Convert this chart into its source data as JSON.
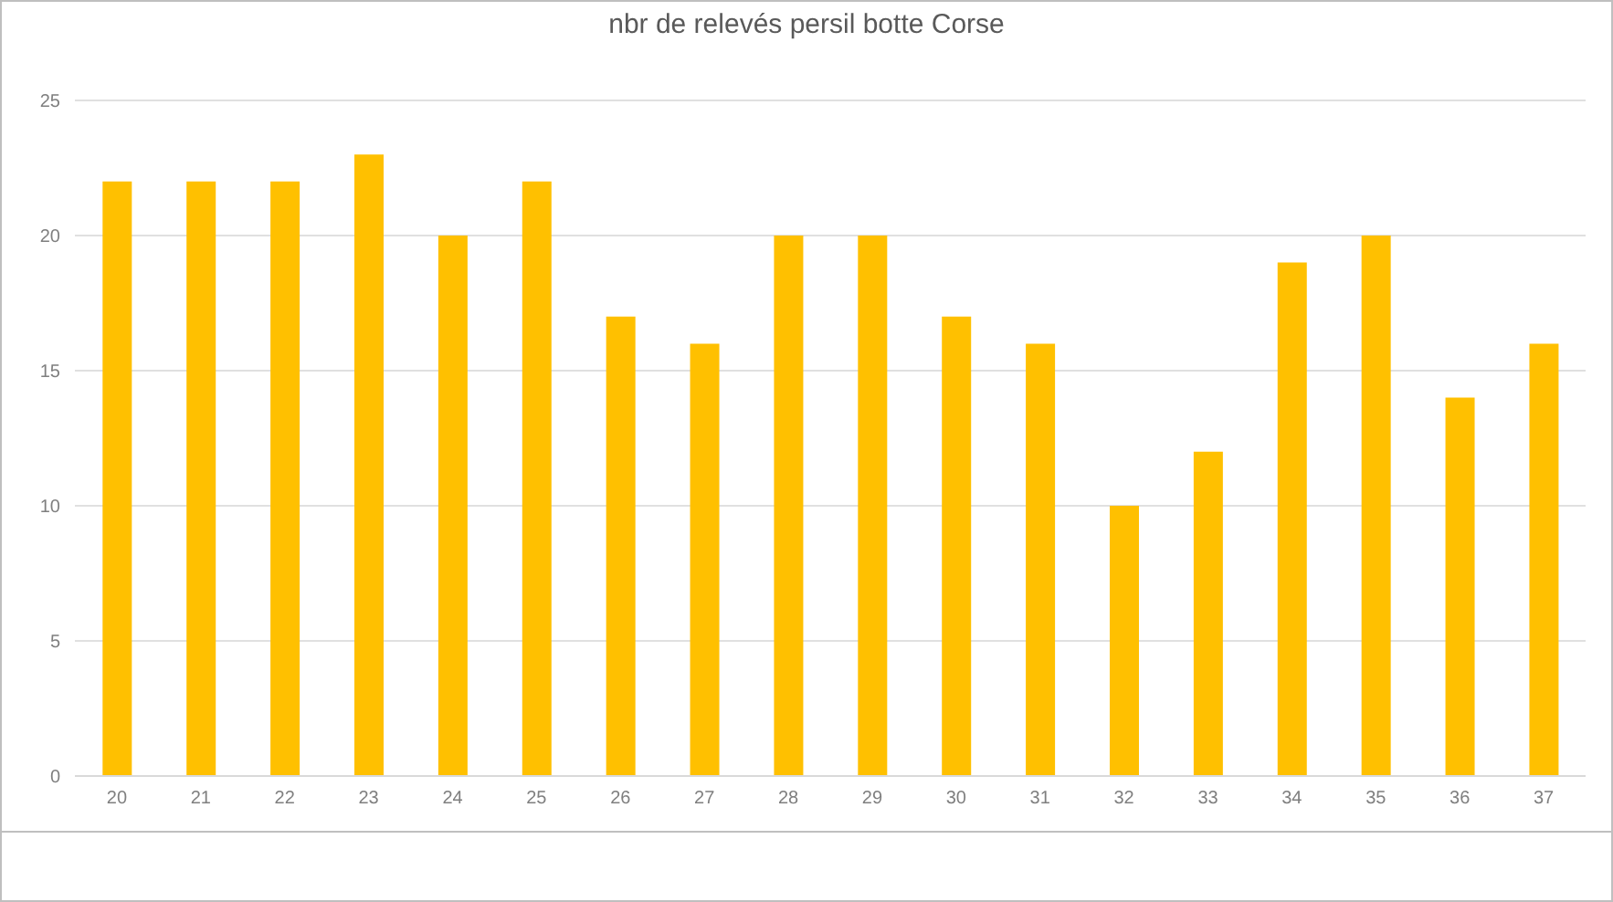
{
  "chart_data": {
    "type": "bar",
    "title": "nbr de relevés persil botte Corse",
    "categories": [
      "20",
      "21",
      "22",
      "23",
      "24",
      "25",
      "26",
      "27",
      "28",
      "29",
      "30",
      "31",
      "32",
      "33",
      "34",
      "35",
      "36",
      "37"
    ],
    "values": [
      22,
      22,
      22,
      23,
      20,
      22,
      17,
      16,
      20,
      20,
      17,
      16,
      10,
      12,
      19,
      20,
      14,
      16
    ],
    "color": "#ffc000",
    "ylim": [
      0,
      25
    ],
    "yticks": [
      0,
      5,
      10,
      15,
      20,
      25
    ],
    "grid": "y"
  }
}
